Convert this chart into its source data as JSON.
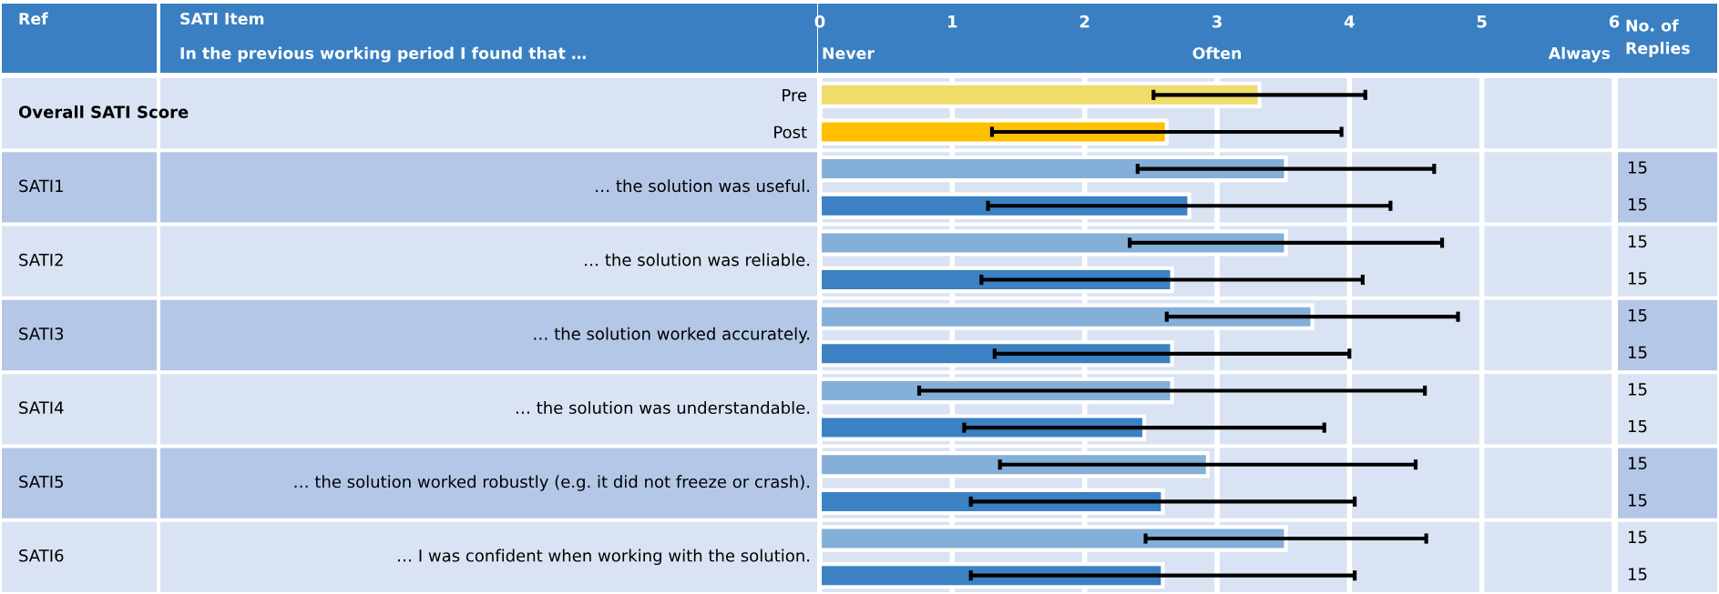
{
  "chart_data": {
    "type": "bar",
    "orientation": "horizontal",
    "categories": [
      "Pre",
      "Post",
      null,
      null,
      null,
      null,
      null,
      null,
      null,
      null,
      null,
      null,
      null,
      null
    ],
    "values": [
      3.32,
      2.62,
      3.52,
      2.79,
      3.52,
      2.66,
      3.72,
      2.66,
      2.66,
      2.45,
      2.93,
      2.59,
      3.52,
      2.59
    ],
    "errors": [
      0.8,
      1.32,
      1.12,
      1.52,
      1.18,
      1.44,
      1.1,
      1.34,
      1.91,
      1.36,
      1.57,
      1.45,
      1.06,
      1.45
    ],
    "colors": [
      "#efdc6b",
      "#ffc000",
      "#84afd9",
      "#3b81c3",
      "#84afd9",
      "#3b81c3",
      "#84afd9",
      "#3b81c3",
      "#84afd9",
      "#3b81c3",
      "#84afd9",
      "#3b81c3",
      "#84afd9",
      "#3b81c3"
    ],
    "xlim": [
      0,
      6
    ],
    "xticks": [
      0,
      1,
      2,
      3,
      4,
      5,
      6
    ],
    "grid": "x",
    "legend": false,
    "annotations": [
      "Ref",
      "SATI Item",
      "In the previous working period I found that …",
      "Never",
      "Often",
      "Always",
      "No. of\nReplies",
      "Overall SATI Score",
      "SATI1",
      "… the solution was useful.",
      "15",
      "15",
      "SATI2",
      "… the solution was reliable.",
      "15",
      "15",
      "SATI3",
      "… the solution worked accurately.",
      "15",
      "15",
      "SATI4",
      "… the solution was understandable.",
      "15",
      "15",
      "SATI5",
      "… the solution worked robustly (e.g. it did not freeze or crash).",
      "15",
      "15",
      "SATI6",
      "… I was confident when working with the solution.",
      "15",
      "15"
    ]
  }
}
